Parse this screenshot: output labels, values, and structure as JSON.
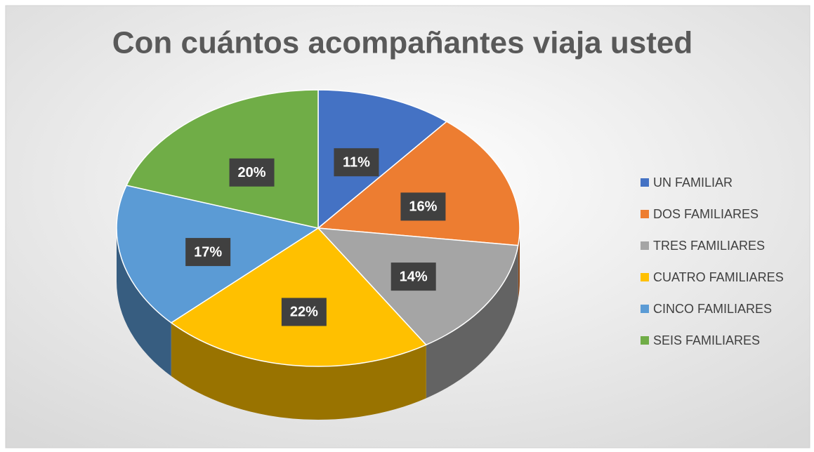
{
  "chart_data": {
    "type": "pie3d",
    "title": "Con cuántos acompañantes viaja usted",
    "categories": [
      "UN FAMILIAR",
      "DOS FAMILIARES",
      "TRES FAMILIARES",
      "CUATRO FAMILIARES",
      "CINCO FAMILIARES",
      "SEIS FAMILIARES"
    ],
    "values": [
      11,
      16,
      14,
      22,
      17,
      20
    ],
    "value_labels": [
      "11%",
      "16%",
      "14%",
      "22%",
      "17%",
      "20%"
    ],
    "colors": [
      "#4472c4",
      "#ed7d31",
      "#a5a5a5",
      "#ffc000",
      "#5b9bd5",
      "#70ad47"
    ],
    "legend": "right"
  }
}
